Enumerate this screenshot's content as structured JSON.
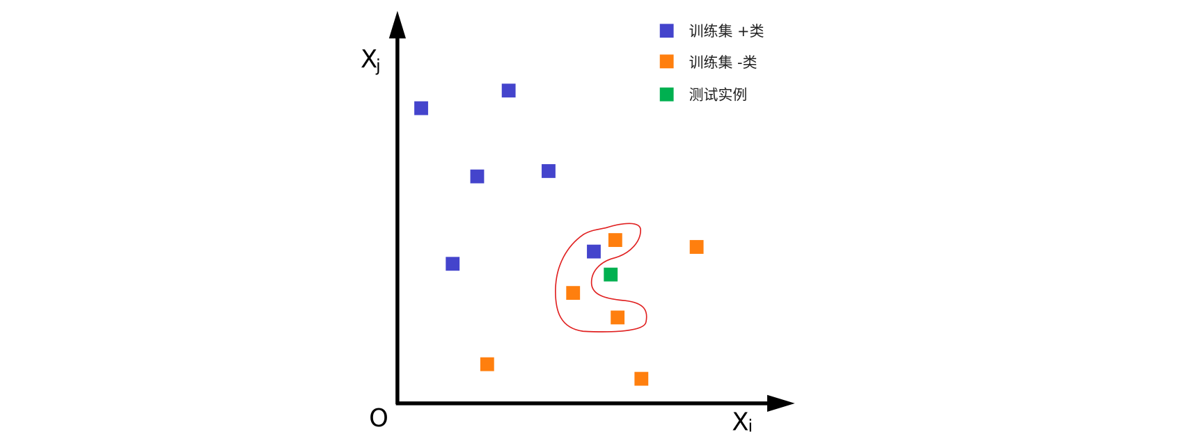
{
  "axes": {
    "y_label": "X",
    "y_sub": "j",
    "x_label": "X",
    "x_sub": "i",
    "origin": "O"
  },
  "legend": [
    {
      "label": "训练集 +类"
    },
    {
      "label": "训练集 -类"
    },
    {
      "label": "测试实例"
    }
  ]
}
